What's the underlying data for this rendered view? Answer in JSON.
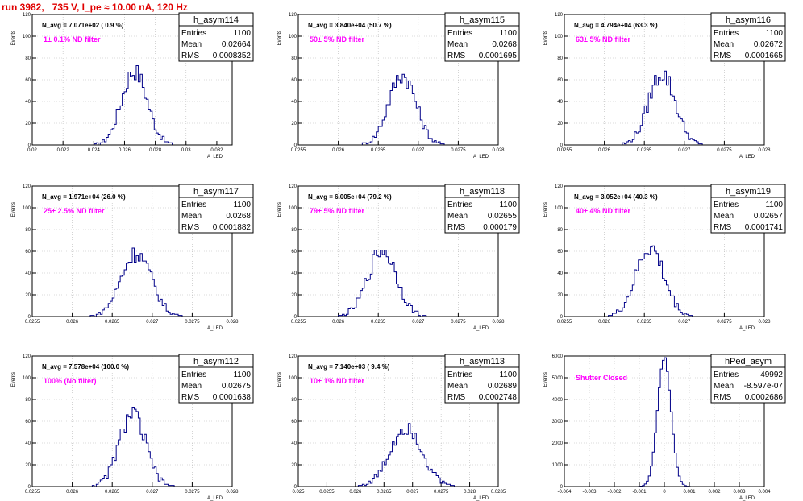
{
  "title": "run 3982,   735 V, I_pe ≈ 10.00 nA, 120 Hz",
  "stats_labels": {
    "entries": "Entries",
    "mean": "Mean",
    "rms": "RMS"
  },
  "chart_data": [
    {
      "type": "bar",
      "name": "h_asym114",
      "annotation": "N_avg = 7.071e+02 ( 0.9 %)",
      "label": "1± 0.1% ND filter",
      "ylabel": "Events",
      "xlabel": "A_LED",
      "xlim": [
        0.02,
        0.033
      ],
      "ylim": [
        0,
        120
      ],
      "xticks": [
        "0.02",
        "0.022",
        "0.024",
        "0.026",
        "0.028",
        "0.03",
        "0.032"
      ],
      "xtick_values": [
        0.02,
        0.022,
        0.024,
        0.026,
        0.028,
        0.03,
        0.032
      ],
      "yticks": [
        "0",
        "20",
        "40",
        "60",
        "80",
        "100",
        "120"
      ],
      "entries": "1100",
      "mean": "0.02664",
      "rms": "0.0008352"
    },
    {
      "type": "bar",
      "name": "h_asym115",
      "annotation": "N_avg = 3.840e+04 (50.7 %)",
      "label": "50± 5% ND filter",
      "ylabel": "Events",
      "xlabel": "A_LED",
      "xlim": [
        0.0255,
        0.028
      ],
      "ylim": [
        0,
        120
      ],
      "xticks": [
        "0.0255",
        "0.026",
        "0.0265",
        "0.027",
        "0.0275",
        "0.028"
      ],
      "xtick_values": [
        0.0255,
        0.026,
        0.0265,
        0.027,
        0.0275,
        0.028
      ],
      "yticks": [
        "0",
        "20",
        "40",
        "60",
        "80",
        "100",
        "120"
      ],
      "entries": "1100",
      "mean": "0.0268",
      "rms": "0.0001695"
    },
    {
      "type": "bar",
      "name": "h_asym116",
      "annotation": "N_avg = 4.794e+04 (63.3 %)",
      "label": "63± 5% ND filter",
      "ylabel": "Events",
      "xlabel": "A_LED",
      "xlim": [
        0.0255,
        0.028
      ],
      "ylim": [
        0,
        120
      ],
      "xticks": [
        "0.0255",
        "0.026",
        "0.0265",
        "0.027",
        "0.0275",
        "0.028"
      ],
      "xtick_values": [
        0.0255,
        0.026,
        0.0265,
        0.027,
        0.0275,
        0.028
      ],
      "yticks": [
        "0",
        "20",
        "40",
        "60",
        "80",
        "100",
        "120"
      ],
      "entries": "1100",
      "mean": "0.02672",
      "rms": "0.0001665"
    },
    {
      "type": "bar",
      "name": "h_asym117",
      "annotation": "N_avg = 1.971e+04 (26.0 %)",
      "label": "25± 2.5% ND filter",
      "ylabel": "Events",
      "xlabel": "A_LED",
      "xlim": [
        0.0255,
        0.028
      ],
      "ylim": [
        0,
        120
      ],
      "xticks": [
        "0.0255",
        "0.026",
        "0.0265",
        "0.027",
        "0.0275",
        "0.028"
      ],
      "xtick_values": [
        0.0255,
        0.026,
        0.0265,
        0.027,
        0.0275,
        0.028
      ],
      "yticks": [
        "0",
        "20",
        "40",
        "60",
        "80",
        "100",
        "120"
      ],
      "entries": "1100",
      "mean": "0.0268",
      "rms": "0.0001882"
    },
    {
      "type": "bar",
      "name": "h_asym118",
      "annotation": "N_avg = 6.005e+04 (79.2 %)",
      "label": "79± 5% ND filter",
      "ylabel": "Events",
      "xlabel": "A_LED",
      "xlim": [
        0.0255,
        0.028
      ],
      "ylim": [
        0,
        120
      ],
      "xticks": [
        "0.0255",
        "0.026",
        "0.0265",
        "0.027",
        "0.0275",
        "0.028"
      ],
      "xtick_values": [
        0.0255,
        0.026,
        0.0265,
        0.027,
        0.0275,
        0.028
      ],
      "yticks": [
        "0",
        "20",
        "40",
        "60",
        "80",
        "100",
        "120"
      ],
      "entries": "1100",
      "mean": "0.02655",
      "rms": "0.000179"
    },
    {
      "type": "bar",
      "name": "h_asym119",
      "annotation": "N_avg = 3.052e+04 (40.3 %)",
      "label": "40± 4% ND filter",
      "ylabel": "Events",
      "xlabel": "A_LED",
      "xlim": [
        0.0255,
        0.028
      ],
      "ylim": [
        0,
        120
      ],
      "xticks": [
        "0.0255",
        "0.026",
        "0.0265",
        "0.027",
        "0.0275",
        "0.028"
      ],
      "xtick_values": [
        0.0255,
        0.026,
        0.0265,
        0.027,
        0.0275,
        0.028
      ],
      "yticks": [
        "0",
        "20",
        "40",
        "60",
        "80",
        "100",
        "120"
      ],
      "entries": "1100",
      "mean": "0.02657",
      "rms": "0.0001741"
    },
    {
      "type": "bar",
      "name": "h_asym112",
      "annotation": "N_avg = 7.578e+04 (100.0 %)",
      "label": "100% (No filter)",
      "ylabel": "Events",
      "xlabel": "A_LED",
      "xlim": [
        0.0255,
        0.028
      ],
      "ylim": [
        0,
        120
      ],
      "xticks": [
        "0.0255",
        "0.026",
        "0.0265",
        "0.027",
        "0.0275",
        "0.028"
      ],
      "xtick_values": [
        0.0255,
        0.026,
        0.0265,
        0.027,
        0.0275,
        0.028
      ],
      "yticks": [
        "0",
        "20",
        "40",
        "60",
        "80",
        "100",
        "120"
      ],
      "entries": "1100",
      "mean": "0.02675",
      "rms": "0.0001638"
    },
    {
      "type": "bar",
      "name": "h_asym113",
      "annotation": "N_avg = 7.140e+03 ( 9.4 %)",
      "label": "10± 1% ND filter",
      "ylabel": "Events",
      "xlabel": "A_LED",
      "xlim": [
        0.025,
        0.0285
      ],
      "ylim": [
        0,
        120
      ],
      "xticks": [
        "0.025",
        "0.0255",
        "0.026",
        "0.0265",
        "0.027",
        "0.0275",
        "0.028",
        "0.0285"
      ],
      "xtick_values": [
        0.025,
        0.0255,
        0.026,
        0.0265,
        0.027,
        0.0275,
        0.028,
        0.0285
      ],
      "yticks": [
        "0",
        "20",
        "40",
        "60",
        "80",
        "100",
        "120"
      ],
      "entries": "1100",
      "mean": "0.02689",
      "rms": "0.0002748"
    },
    {
      "type": "bar",
      "name": "hPed_asym",
      "annotation": "",
      "label": "Shutter Closed",
      "ylabel": "Events",
      "xlabel": "A_LED",
      "xlim": [
        -0.004,
        0.004
      ],
      "ylim": [
        0,
        6000
      ],
      "xticks": [
        "-0.004",
        "-0.003",
        "-0.002",
        "-0.001",
        "0",
        "0.001",
        "0.002",
        "0.003",
        "0.004"
      ],
      "xtick_values": [
        -0.004,
        -0.003,
        -0.002,
        -0.001,
        0,
        0.001,
        0.002,
        0.003,
        0.004
      ],
      "yticks": [
        "0",
        "1000",
        "2000",
        "3000",
        "4000",
        "5000",
        "6000"
      ],
      "entries": "49992",
      "mean": "-8.597e-07",
      "rms": "0.0002686"
    }
  ]
}
